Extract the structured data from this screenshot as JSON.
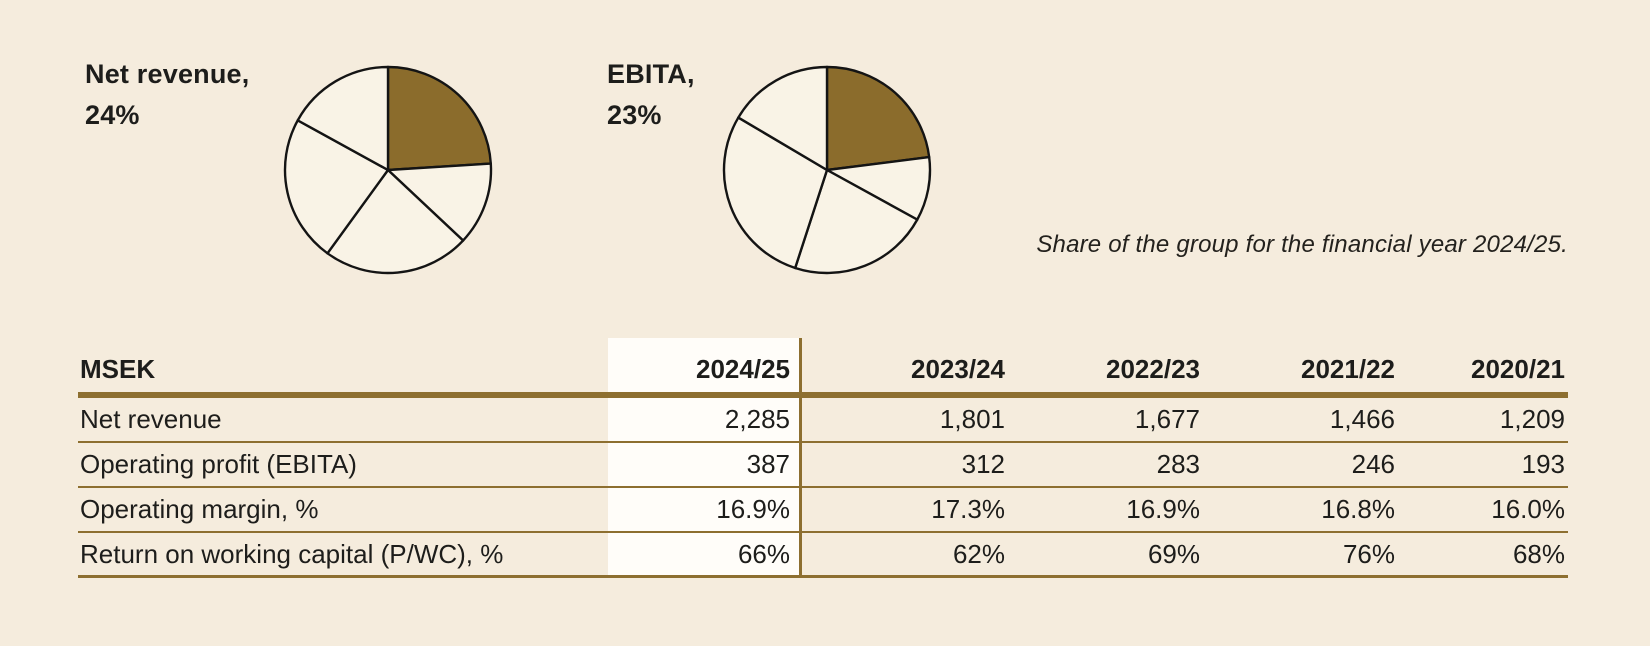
{
  "colors": {
    "background": "#f5ecdd",
    "pie_fill": "#f9f3e6",
    "highlight": "#8b6c2c",
    "rule": "#8d6f30",
    "text": "#1d1d1b",
    "highlight_column_bg": "#fffdf9",
    "outline": "#141414"
  },
  "caption": "Share of the group for the financial year 2024/25.",
  "chart_data": [
    {
      "type": "pie",
      "title": "Net revenue, 24%",
      "label_lines": [
        "Net revenue,",
        "24%"
      ],
      "values": [
        24,
        13,
        23,
        23,
        17
      ],
      "highlight_index": 0,
      "start_angle_deg": 0,
      "direction": "clockwise",
      "legend_position": "left"
    },
    {
      "type": "pie",
      "title": "EBITA, 23%",
      "label_lines": [
        "EBITA,",
        "23%"
      ],
      "values": [
        23,
        10,
        22,
        28.5,
        16.5
      ],
      "highlight_index": 0,
      "start_angle_deg": 0,
      "direction": "clockwise",
      "legend_position": "left"
    },
    {
      "type": "table",
      "unit_header": "MSEK",
      "columns": [
        "2024/25",
        "2023/24",
        "2022/23",
        "2021/22",
        "2020/21"
      ],
      "highlighted_column": "2024/25",
      "rows": [
        {
          "label": "Net revenue",
          "values": [
            "2,285",
            "1,801",
            "1,677",
            "1,466",
            "1,209"
          ]
        },
        {
          "label": "Operating profit (EBITA)",
          "values": [
            "387",
            "312",
            "283",
            "246",
            "193"
          ]
        },
        {
          "label": "Operating margin, %",
          "values": [
            "16.9%",
            "17.3%",
            "16.9%",
            "16.8%",
            "16.0%"
          ]
        },
        {
          "label": "Return on working capital (P/WC), %",
          "values": [
            "66%",
            "62%",
            "69%",
            "76%",
            "68%"
          ]
        }
      ]
    }
  ]
}
